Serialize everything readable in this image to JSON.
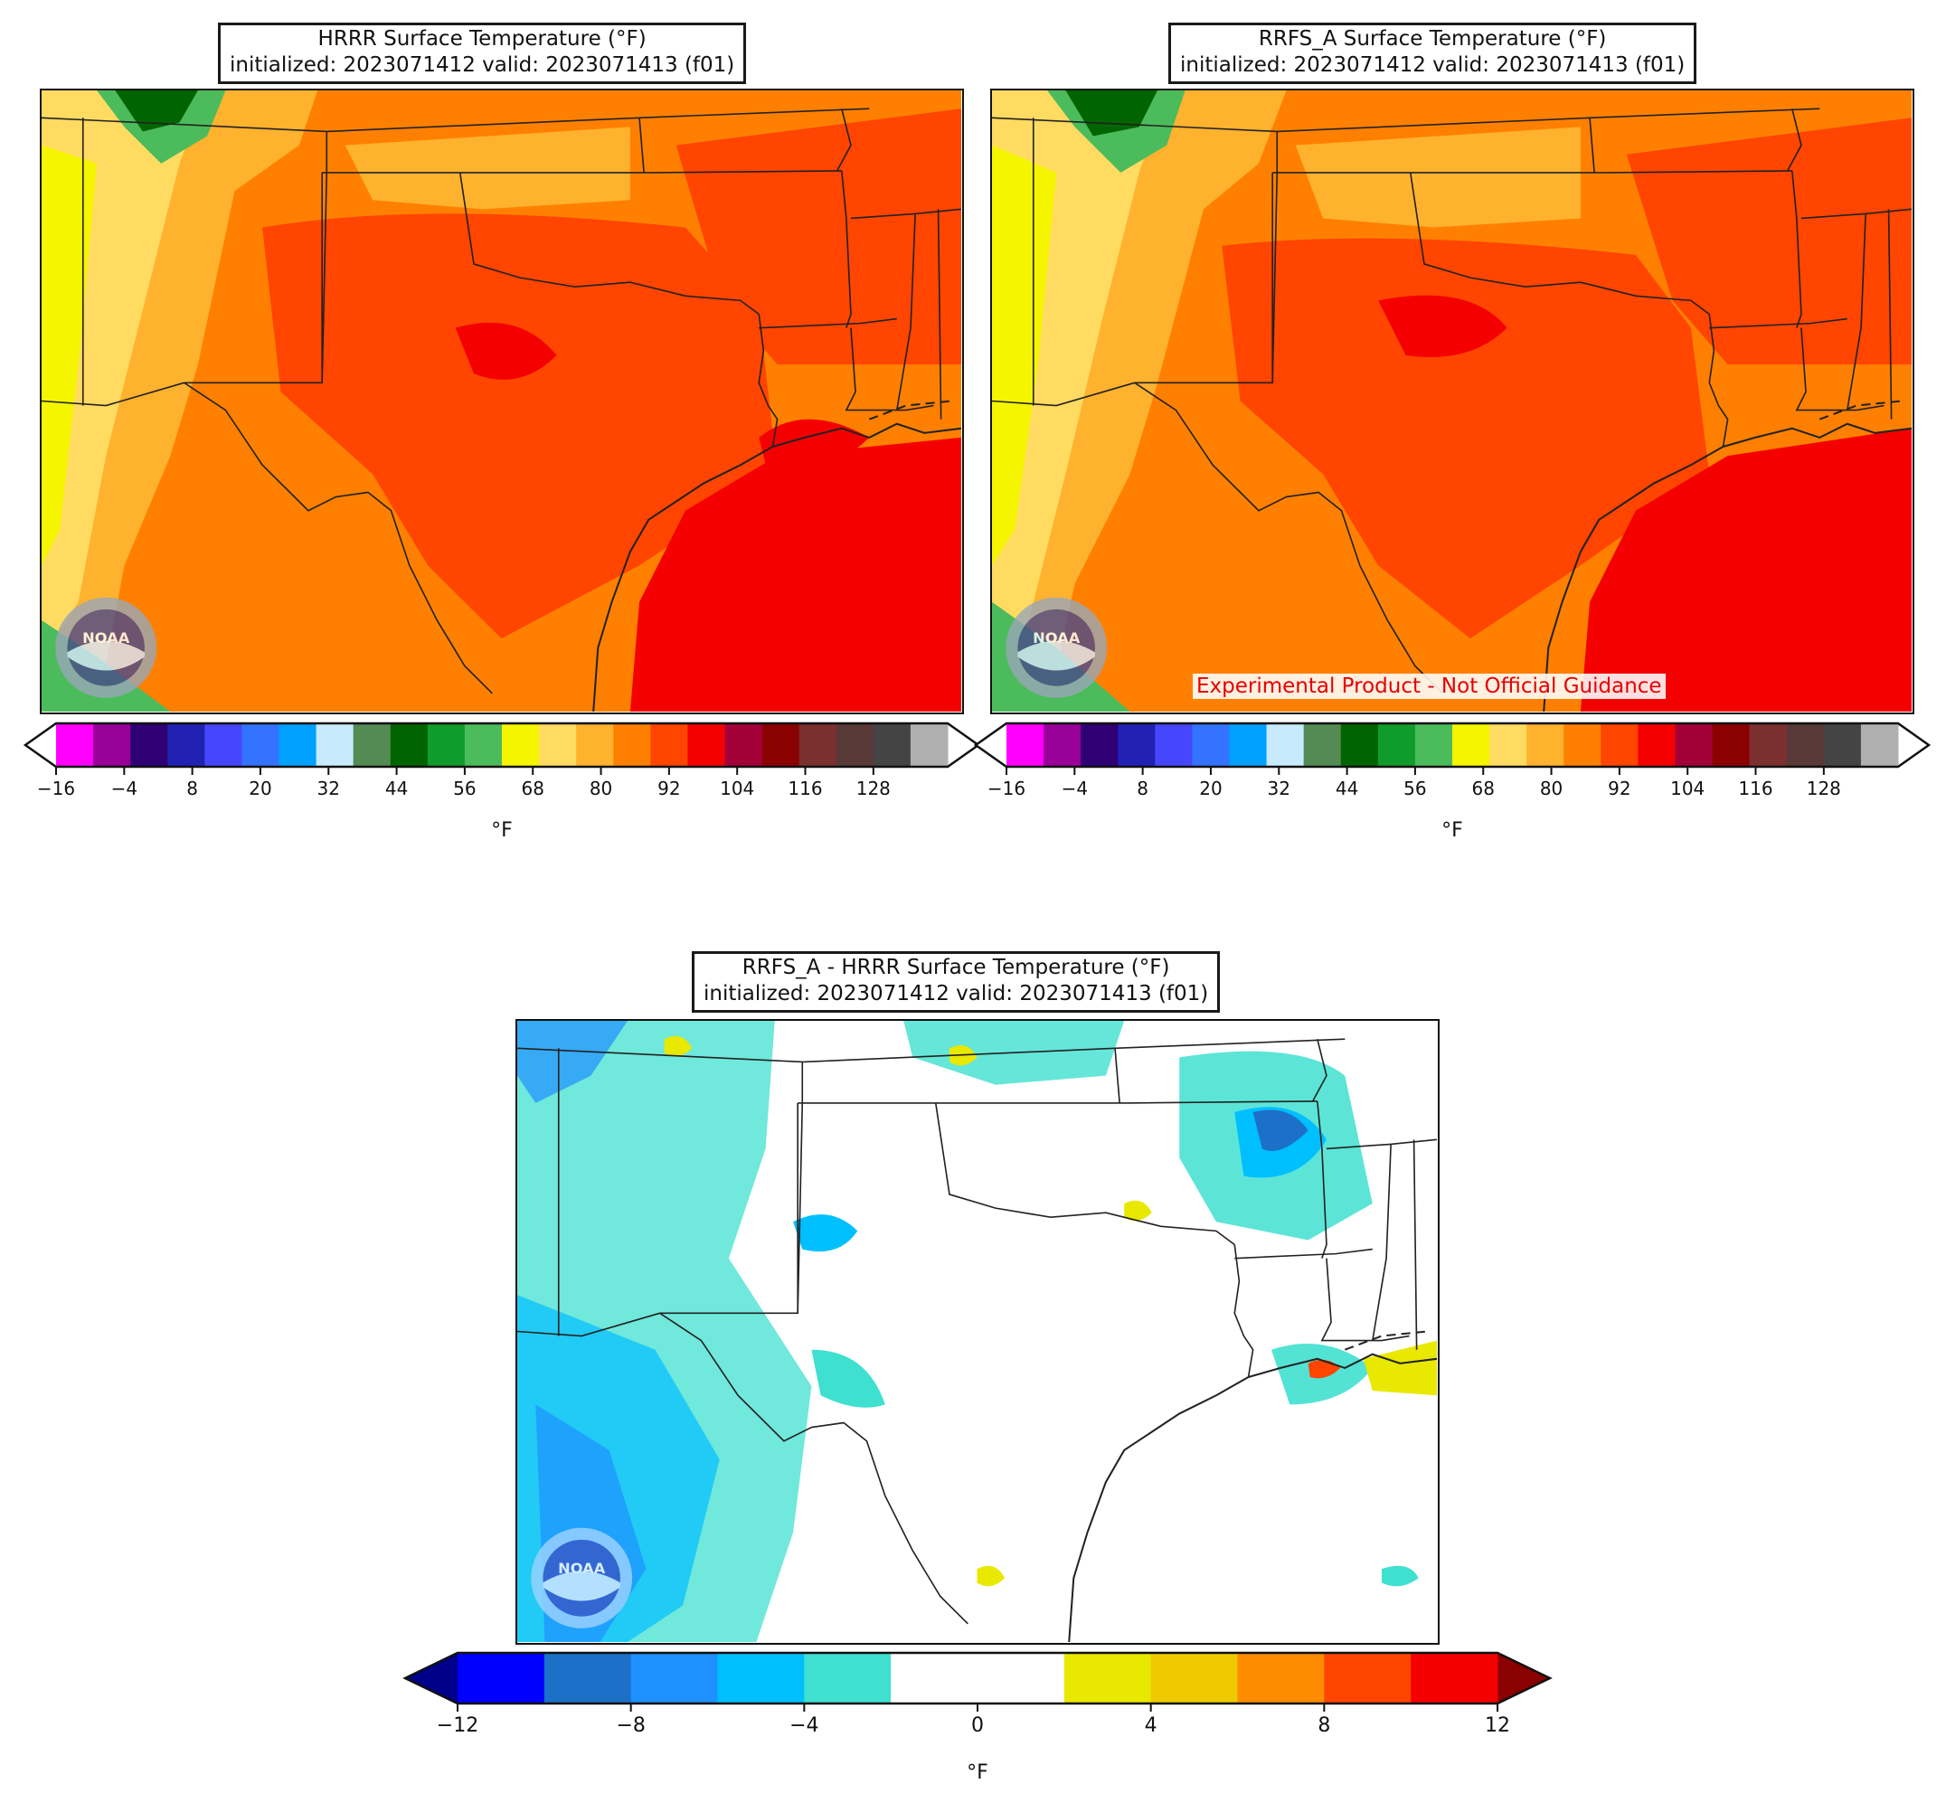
{
  "panels": [
    {
      "id": "hrrr",
      "title": "HRRR Surface Temperature (°F)",
      "subtitle": "initialized: 2023071412 valid: 2023071413 (f01)"
    },
    {
      "id": "rrfs",
      "title": "RRFS_A Surface Temperature (°F)",
      "subtitle": "initialized: 2023071412 valid: 2023071413 (f01)",
      "disclaimer": "Experimental Product - Not Official Guidance"
    },
    {
      "id": "diff",
      "title": "RRFS_A - HRRR Surface Temperature (°F)",
      "subtitle": "initialized: 2023071412 valid: 2023071413 (f01)"
    }
  ],
  "logo_text": "NOAA",
  "temp_colorbar": {
    "unit": "°F",
    "ticks": [
      "−16",
      "−4",
      "8",
      "20",
      "32",
      "44",
      "56",
      "68",
      "80",
      "92",
      "104",
      "116",
      "128"
    ],
    "colors": [
      "#ff00ff",
      "#990099",
      "#2e0073",
      "#2121b4",
      "#4646ff",
      "#3373ff",
      "#00a0ff",
      "#c7ebfc",
      "#548b54",
      "#006400",
      "#109c2a",
      "#4cbb5c",
      "#f5f500",
      "#ffdb61",
      "#ffb22e",
      "#ff8000",
      "#ff4500",
      "#f50000",
      "#a30037",
      "#8b0000",
      "#7c2f2f",
      "#593838",
      "#444444",
      "#b0b0b0"
    ],
    "extend_low_color": "#ffffff",
    "extend_high_color": "#ffffff"
  },
  "diff_colorbar": {
    "unit": "°F",
    "ticks": [
      "−12",
      "−8",
      "−4",
      "0",
      "4",
      "8",
      "12"
    ],
    "colors": [
      "#0000ff",
      "#1c70c7",
      "#1e90ff",
      "#00bfff",
      "#40e0d0",
      "#ffffff",
      "#ffffff",
      "#e8e800",
      "#eec900",
      "#ff8c00",
      "#ff4500",
      "#f50000"
    ],
    "extend_low_color": "#00008b",
    "extend_high_color": "#8b0000"
  }
}
